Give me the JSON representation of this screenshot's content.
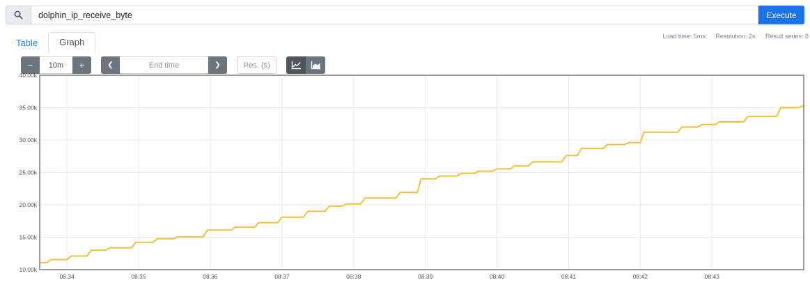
{
  "query_bar": {
    "query": "dolphin_ip_receive_byte",
    "execute_label": "Execute"
  },
  "tabs": {
    "table_label": "Table",
    "graph_label": "Graph"
  },
  "stats": {
    "load_time": "Load time: 5ms",
    "resolution": "Resolution: 2s",
    "result_series": "Result series: 8"
  },
  "toolbar": {
    "minus_label": "−",
    "plus_label": "+",
    "range_value": "10m",
    "prev_label": "❮",
    "next_label": "❯",
    "end_time_placeholder": "End time",
    "res_placeholder": "Res. (s)"
  },
  "colors": {
    "accent": "#1a73e8",
    "link": "#1e88f7",
    "secondary_button": "#6c757d",
    "active_button": "#4e555b",
    "series_line": "#edc240",
    "grid": "#e8e8e8",
    "chart_border": "#999999",
    "tick_text": "#545454"
  },
  "chart_data": {
    "type": "line",
    "style": "step",
    "title": "",
    "xlabel": "",
    "ylabel": "",
    "legend": false,
    "grid": true,
    "x_domain": [
      33.62,
      44.28
    ],
    "y_domain": [
      10000,
      40000
    ],
    "x_ticks": [
      {
        "t": 34,
        "label": "08:34"
      },
      {
        "t": 35,
        "label": "08:35"
      },
      {
        "t": 36,
        "label": "08:36"
      },
      {
        "t": 37,
        "label": "08:37"
      },
      {
        "t": 38,
        "label": "08:38"
      },
      {
        "t": 39,
        "label": "08:39"
      },
      {
        "t": 40,
        "label": "08:40"
      },
      {
        "t": 41,
        "label": "08:41"
      },
      {
        "t": 42,
        "label": "08:42"
      },
      {
        "t": 43,
        "label": "08:43"
      }
    ],
    "y_ticks": [
      {
        "v": 10000,
        "label": "10.00k"
      },
      {
        "v": 15000,
        "label": "15.00k"
      },
      {
        "v": 20000,
        "label": "20.00k"
      },
      {
        "v": 25000,
        "label": "25.00k"
      },
      {
        "v": 30000,
        "label": "30.00k"
      },
      {
        "v": 35000,
        "label": "35.00k"
      },
      {
        "v": 40000,
        "label": "40.00k"
      }
    ],
    "series": [
      {
        "name": "dolphin_ip_receive_byte",
        "color": "#edc240",
        "points": [
          [
            33.62,
            11100
          ],
          [
            33.72,
            11100
          ],
          [
            33.78,
            11550
          ],
          [
            34.0,
            11550
          ],
          [
            34.06,
            12100
          ],
          [
            34.28,
            12100
          ],
          [
            34.34,
            13000
          ],
          [
            34.54,
            13000
          ],
          [
            34.6,
            13350
          ],
          [
            34.9,
            13350
          ],
          [
            34.96,
            14200
          ],
          [
            35.2,
            14200
          ],
          [
            35.26,
            14750
          ],
          [
            35.49,
            14750
          ],
          [
            35.54,
            15050
          ],
          [
            35.9,
            15050
          ],
          [
            35.96,
            16100
          ],
          [
            36.29,
            16100
          ],
          [
            36.35,
            16550
          ],
          [
            36.62,
            16550
          ],
          [
            36.68,
            17250
          ],
          [
            36.94,
            17250
          ],
          [
            37.0,
            18100
          ],
          [
            37.3,
            18100
          ],
          [
            37.36,
            19000
          ],
          [
            37.6,
            19000
          ],
          [
            37.66,
            19800
          ],
          [
            37.84,
            19800
          ],
          [
            37.9,
            20150
          ],
          [
            38.1,
            20150
          ],
          [
            38.16,
            21050
          ],
          [
            38.59,
            21050
          ],
          [
            38.65,
            21900
          ],
          [
            38.89,
            21900
          ],
          [
            38.94,
            24000
          ],
          [
            39.14,
            24000
          ],
          [
            39.2,
            24450
          ],
          [
            39.44,
            24450
          ],
          [
            39.5,
            24850
          ],
          [
            39.69,
            24850
          ],
          [
            39.74,
            25200
          ],
          [
            39.94,
            25200
          ],
          [
            40.0,
            25550
          ],
          [
            40.19,
            25550
          ],
          [
            40.24,
            26000
          ],
          [
            40.44,
            26000
          ],
          [
            40.5,
            26650
          ],
          [
            40.9,
            26650
          ],
          [
            40.97,
            27600
          ],
          [
            41.12,
            27600
          ],
          [
            41.18,
            28700
          ],
          [
            41.48,
            28700
          ],
          [
            41.54,
            29300
          ],
          [
            41.78,
            29300
          ],
          [
            41.84,
            29600
          ],
          [
            42.0,
            29600
          ],
          [
            42.05,
            31200
          ],
          [
            42.52,
            31200
          ],
          [
            42.58,
            32000
          ],
          [
            42.8,
            32000
          ],
          [
            42.86,
            32400
          ],
          [
            43.05,
            32400
          ],
          [
            43.1,
            32800
          ],
          [
            43.44,
            32800
          ],
          [
            43.5,
            33650
          ],
          [
            43.9,
            33650
          ],
          [
            43.96,
            35000
          ],
          [
            44.2,
            35000
          ],
          [
            44.28,
            35300
          ]
        ]
      }
    ]
  }
}
